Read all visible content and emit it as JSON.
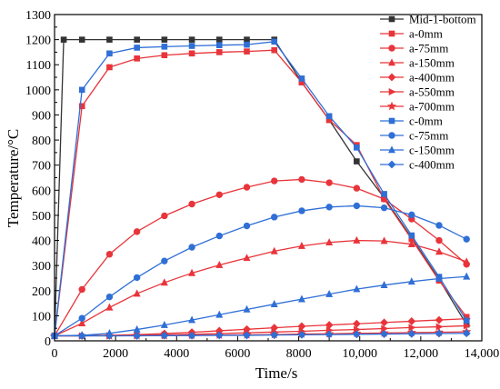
{
  "chart_data": {
    "type": "line",
    "xlabel": "Time/s",
    "ylabel": "Temperature/°C",
    "xlim": [
      0,
      14000
    ],
    "ylim": [
      0,
      1300
    ],
    "x_ticks": [
      "0",
      "2000",
      "4000",
      "6000",
      "8000",
      "10,000",
      "12,000",
      "14,000"
    ],
    "y_ticks": [
      "0",
      "100",
      "200",
      "300",
      "400",
      "500",
      "600",
      "700",
      "800",
      "900",
      "1000",
      "1100",
      "1200",
      "1300"
    ],
    "grid": false,
    "legend_position": "top-right",
    "series": [
      {
        "name": "Mid-1-bottom",
        "color": "#333333",
        "marker": "square",
        "x": [
          0,
          300,
          900,
          1800,
          2700,
          3600,
          4500,
          5400,
          6300,
          7200,
          8100,
          9000,
          9900,
          10800,
          11700,
          12600,
          13500
        ],
        "y": [
          20,
          1200,
          1200,
          1200,
          1200,
          1200,
          1200,
          1200,
          1200,
          1200,
          1030,
          880,
          715,
          570,
          410,
          245,
          65
        ]
      },
      {
        "name": "a-0mm",
        "color": "#e8343a",
        "marker": "square",
        "x": [
          0,
          900,
          1800,
          2700,
          3600,
          4500,
          5400,
          6300,
          7200,
          8100,
          9000,
          9900,
          10800,
          11700,
          12600,
          13500
        ],
        "y": [
          20,
          935,
          1090,
          1125,
          1138,
          1145,
          1150,
          1153,
          1158,
          1030,
          880,
          780,
          565,
          405,
          240,
          95
        ]
      },
      {
        "name": "a-75mm",
        "color": "#e8343a",
        "marker": "circle",
        "x": [
          0,
          900,
          1800,
          2700,
          3600,
          4500,
          5400,
          6300,
          7200,
          8100,
          9000,
          9900,
          10800,
          11700,
          12600,
          13500
        ],
        "y": [
          20,
          205,
          345,
          435,
          498,
          545,
          582,
          612,
          637,
          643,
          630,
          608,
          565,
          485,
          400,
          305
        ]
      },
      {
        "name": "a-150mm",
        "color": "#e8343a",
        "marker": "triangle-up",
        "x": [
          0,
          900,
          1800,
          2700,
          3600,
          4500,
          5400,
          6300,
          7200,
          8100,
          9000,
          9900,
          10800,
          11700,
          12600,
          13500
        ],
        "y": [
          20,
          70,
          133,
          188,
          232,
          270,
          302,
          330,
          357,
          378,
          392,
          400,
          398,
          385,
          355,
          315
        ]
      },
      {
        "name": "a-400mm",
        "color": "#e8343a",
        "marker": "diamond",
        "x": [
          0,
          900,
          1800,
          2700,
          3600,
          4500,
          5400,
          6300,
          7200,
          8100,
          9000,
          9900,
          10800,
          11700,
          12600,
          13500
        ],
        "y": [
          20,
          20,
          22,
          25,
          29,
          34,
          40,
          46,
          52,
          58,
          63,
          68,
          73,
          78,
          83,
          88
        ]
      },
      {
        "name": "a-550mm",
        "color": "#e8343a",
        "marker": "triangle-right",
        "x": [
          0,
          900,
          1800,
          2700,
          3600,
          4500,
          5400,
          6300,
          7200,
          8100,
          9000,
          9900,
          10800,
          11700,
          12600,
          13500
        ],
        "y": [
          20,
          20,
          21,
          22,
          24,
          26,
          29,
          32,
          35,
          38,
          42,
          45,
          49,
          53,
          56,
          60
        ]
      },
      {
        "name": "a-700mm",
        "color": "#e8343a",
        "marker": "star",
        "x": [
          0,
          900,
          1800,
          2700,
          3600,
          4500,
          5400,
          6300,
          7200,
          8100,
          9000,
          9900,
          10800,
          11700,
          12600,
          13500
        ],
        "y": [
          20,
          20,
          20,
          21,
          21,
          22,
          23,
          24,
          25,
          27,
          28,
          30,
          31,
          33,
          34,
          36
        ]
      },
      {
        "name": "c-0mm",
        "color": "#2f6fd6",
        "marker": "square",
        "x": [
          0,
          900,
          1800,
          2700,
          3600,
          4500,
          5400,
          6300,
          7200,
          8100,
          9000,
          9900,
          10800,
          11700,
          12600,
          13500
        ],
        "y": [
          20,
          1000,
          1145,
          1168,
          1172,
          1175,
          1178,
          1180,
          1192,
          1045,
          895,
          770,
          585,
          420,
          255,
          80
        ]
      },
      {
        "name": "c-75mm",
        "color": "#2f6fd6",
        "marker": "circle",
        "x": [
          0,
          900,
          1800,
          2700,
          3600,
          4500,
          5400,
          6300,
          7200,
          8100,
          9000,
          9900,
          10800,
          11700,
          12600,
          13500
        ],
        "y": [
          20,
          90,
          175,
          252,
          318,
          373,
          418,
          458,
          493,
          518,
          533,
          538,
          530,
          502,
          460,
          405
        ]
      },
      {
        "name": "c-150mm",
        "color": "#2f6fd6",
        "marker": "triangle-up",
        "x": [
          0,
          900,
          1800,
          2700,
          3600,
          4500,
          5400,
          6300,
          7200,
          8100,
          9000,
          9900,
          10800,
          11700,
          12600,
          13500
        ],
        "y": [
          20,
          22,
          30,
          45,
          63,
          83,
          104,
          125,
          146,
          166,
          186,
          206,
          222,
          236,
          248,
          256
        ]
      },
      {
        "name": "c-400mm",
        "color": "#2f6fd6",
        "marker": "diamond",
        "x": [
          0,
          900,
          1800,
          2700,
          3600,
          4500,
          5400,
          6300,
          7200,
          8100,
          9000,
          9900,
          10800,
          11700,
          12600,
          13500
        ],
        "y": [
          20,
          20,
          20,
          20,
          21,
          21,
          22,
          22,
          23,
          24,
          25,
          26,
          27,
          28,
          29,
          30
        ]
      }
    ]
  }
}
